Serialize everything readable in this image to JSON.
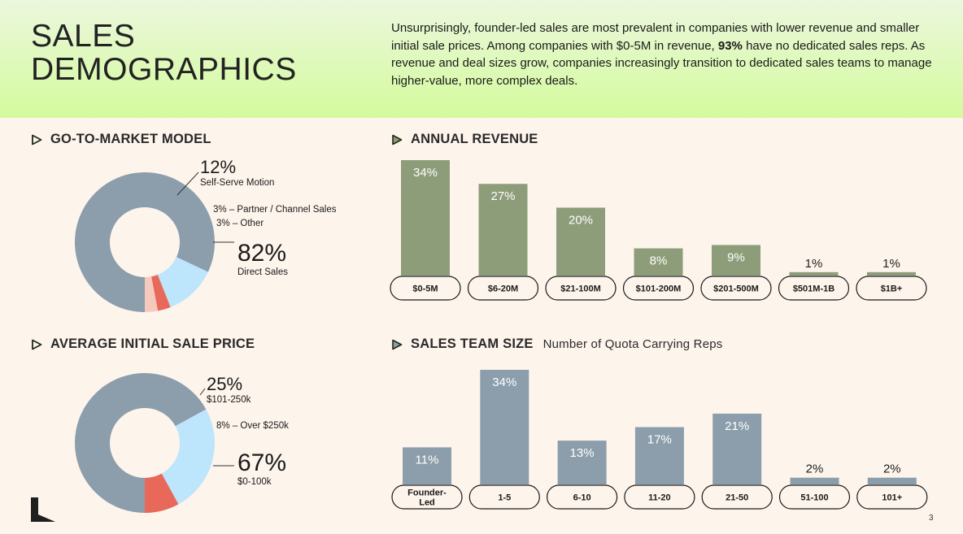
{
  "header": {
    "title_line1": "SALES",
    "title_line2": "DEMOGRAPHICS",
    "intro_pre": "Unsurprisingly, founder-led sales are most prevalent in companies with lower revenue and smaller initial sale prices. Among companies with $0-5M in revenue, ",
    "intro_bold": "93%",
    "intro_post": " have no dedicated sales reps. As revenue and deal sizes grow, companies increasingly transition to dedicated sales teams to manage higher-value, more complex deals."
  },
  "sections": {
    "gtm": "GO-TO-MARKET MODEL",
    "revenue": "ANNUAL REVENUE",
    "price": "AVERAGE INITIAL SALE PRICE",
    "team": "SALES TEAM SIZE",
    "team_sub": "Number of Quota Carrying Reps"
  },
  "annotations": {
    "gtm": {
      "selfserve_pct": "12%",
      "selfserve_label": "Self-Serve Motion",
      "partner": "3% – Partner / Channel Sales",
      "other": "3% – Other",
      "direct_pct": "82%",
      "direct_label": "Direct Sales"
    },
    "price": {
      "mid_pct": "25%",
      "mid_label": "$101-250k",
      "over": "8% – Over $250k",
      "low_pct": "67%",
      "low_label": "$0-100k"
    }
  },
  "colors": {
    "donut_main": "#8c9eab",
    "light_blue": "#bde5fb",
    "salmon": "#e8685a",
    "pale_pink": "#f6c9bd",
    "olive_bar": "#8e9d79",
    "slate_bar": "#8c9eab",
    "header_top": "#ecf7de",
    "header_bottom": "#d3fb9c"
  },
  "page_number": "3",
  "chart_data": [
    {
      "type": "pie",
      "title": "GO-TO-MARKET MODEL",
      "labels": [
        "Direct Sales",
        "Self-Serve Motion",
        "Partner / Channel Sales",
        "Other"
      ],
      "values": [
        82,
        12,
        3,
        3
      ],
      "colors": [
        "#8c9eab",
        "#bde5fb",
        "#e8685a",
        "#f6c9bd"
      ]
    },
    {
      "type": "bar",
      "title": "ANNUAL REVENUE",
      "categories": [
        "$0-5M",
        "$6-20M",
        "$21-100M",
        "$101-200M",
        "$201-500M",
        "$501M-1B",
        "$1B+"
      ],
      "values": [
        34,
        27,
        20,
        8,
        9,
        1,
        1
      ],
      "value_labels": [
        "34%",
        "27%",
        "20%",
        "8%",
        "9%",
        "1%",
        "1%"
      ],
      "color": "#8e9d79"
    },
    {
      "type": "pie",
      "title": "AVERAGE INITIAL SALE PRICE",
      "labels": [
        "$0-100k",
        "$101-250k",
        "Over $250k"
      ],
      "values": [
        67,
        25,
        8
      ],
      "colors": [
        "#8c9eab",
        "#bde5fb",
        "#e8685a"
      ]
    },
    {
      "type": "bar",
      "title": "SALES TEAM SIZE",
      "subtitle": "Number of Quota Carrying Reps",
      "categories": [
        "Founder-Led",
        "1-5",
        "6-10",
        "11-20",
        "21-50",
        "51-100",
        "101+"
      ],
      "category_lines": [
        [
          "Founder-",
          "Led"
        ],
        [
          "1-5"
        ],
        [
          "6-10"
        ],
        [
          "11-20"
        ],
        [
          "21-50"
        ],
        [
          "51-100"
        ],
        [
          "101+"
        ]
      ],
      "values": [
        11,
        34,
        13,
        17,
        21,
        2,
        2
      ],
      "value_labels": [
        "11%",
        "34%",
        "13%",
        "17%",
        "21%",
        "2%",
        "2%"
      ],
      "color": "#8c9eab"
    }
  ]
}
